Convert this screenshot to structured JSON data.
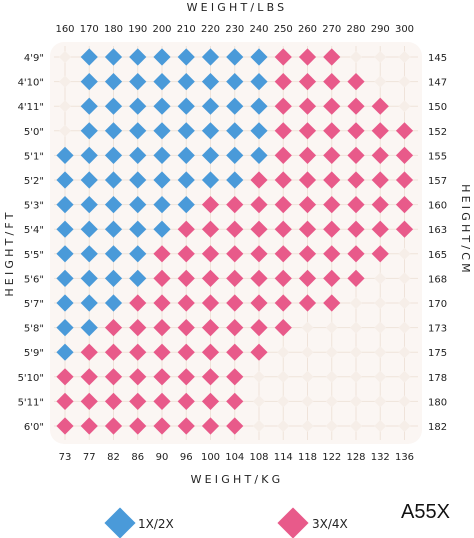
{
  "chart_data": {
    "type": "heatmap",
    "top_axis_title": "WEIGHT/LBS",
    "bottom_axis_title": "WEIGHT/KG",
    "left_axis_title": "HEIGHT/FT",
    "right_axis_title": "HEIGHT/CM",
    "lbs_ticks": [
      "160",
      "170",
      "180",
      "190",
      "200",
      "210",
      "220",
      "230",
      "240",
      "250",
      "260",
      "270",
      "280",
      "290",
      "300"
    ],
    "kg_ticks": [
      "73",
      "77",
      "82",
      "86",
      "90",
      "96",
      "100",
      "104",
      "108",
      "114",
      "118",
      "122",
      "128",
      "132",
      "136"
    ],
    "ft_ticks": [
      "4'9\"",
      "4'10\"",
      "4'11\"",
      "5'0\"",
      "5'1\"",
      "5'2\"",
      "5'3\"",
      "5'4\"",
      "5'5\"",
      "5'6\"",
      "5'7\"",
      "5'8\"",
      "5'9\"",
      "5'10\"",
      "5'11\"",
      "6'0\""
    ],
    "cm_ticks": [
      "145",
      "147",
      "150",
      "152",
      "155",
      "157",
      "160",
      "163",
      "165",
      "168",
      "170",
      "173",
      "175",
      "178",
      "180",
      "182"
    ],
    "legend": [
      {
        "label": "1X/2X",
        "color": "#4a9ad9"
      },
      {
        "label": "3X/4X",
        "color": "#e85a8a"
      }
    ],
    "colors": {
      "blue": "#4a9ad9",
      "pink": "#e85a8a",
      "empty": "#f6eee8"
    },
    "cell_legend": {
      "0": "none",
      "1": "1X/2X",
      "2": "3X/4X"
    },
    "cells": [
      [
        0,
        1,
        1,
        1,
        1,
        1,
        1,
        1,
        1,
        2,
        2,
        2,
        0,
        0,
        0
      ],
      [
        0,
        1,
        1,
        1,
        1,
        1,
        1,
        1,
        1,
        2,
        2,
        2,
        2,
        0,
        0
      ],
      [
        0,
        1,
        1,
        1,
        1,
        1,
        1,
        1,
        1,
        2,
        2,
        2,
        2,
        2,
        0
      ],
      [
        0,
        1,
        1,
        1,
        1,
        1,
        1,
        1,
        1,
        2,
        2,
        2,
        2,
        2,
        2
      ],
      [
        1,
        1,
        1,
        1,
        1,
        1,
        1,
        1,
        1,
        2,
        2,
        2,
        2,
        2,
        2
      ],
      [
        1,
        1,
        1,
        1,
        1,
        1,
        1,
        1,
        2,
        2,
        2,
        2,
        2,
        2,
        2
      ],
      [
        1,
        1,
        1,
        1,
        1,
        1,
        2,
        2,
        2,
        2,
        2,
        2,
        2,
        2,
        2
      ],
      [
        1,
        1,
        1,
        1,
        1,
        2,
        2,
        2,
        2,
        2,
        2,
        2,
        2,
        2,
        2
      ],
      [
        1,
        1,
        1,
        1,
        2,
        2,
        2,
        2,
        2,
        2,
        2,
        2,
        2,
        2,
        0
      ],
      [
        1,
        1,
        1,
        1,
        2,
        2,
        2,
        2,
        2,
        2,
        2,
        2,
        2,
        0,
        0
      ],
      [
        1,
        1,
        1,
        2,
        2,
        2,
        2,
        2,
        2,
        2,
        2,
        2,
        0,
        0,
        0
      ],
      [
        1,
        1,
        2,
        2,
        2,
        2,
        2,
        2,
        2,
        2,
        0,
        0,
        0,
        0,
        0
      ],
      [
        1,
        2,
        2,
        2,
        2,
        2,
        2,
        2,
        2,
        0,
        0,
        0,
        0,
        0,
        0
      ],
      [
        2,
        2,
        2,
        2,
        2,
        2,
        2,
        2,
        0,
        0,
        0,
        0,
        0,
        0,
        0
      ],
      [
        2,
        2,
        2,
        2,
        2,
        2,
        2,
        2,
        0,
        0,
        0,
        0,
        0,
        0,
        0
      ],
      [
        2,
        2,
        2,
        2,
        2,
        2,
        2,
        2,
        0,
        0,
        0,
        0,
        0,
        0,
        0
      ]
    ]
  },
  "model_code": "A55X"
}
